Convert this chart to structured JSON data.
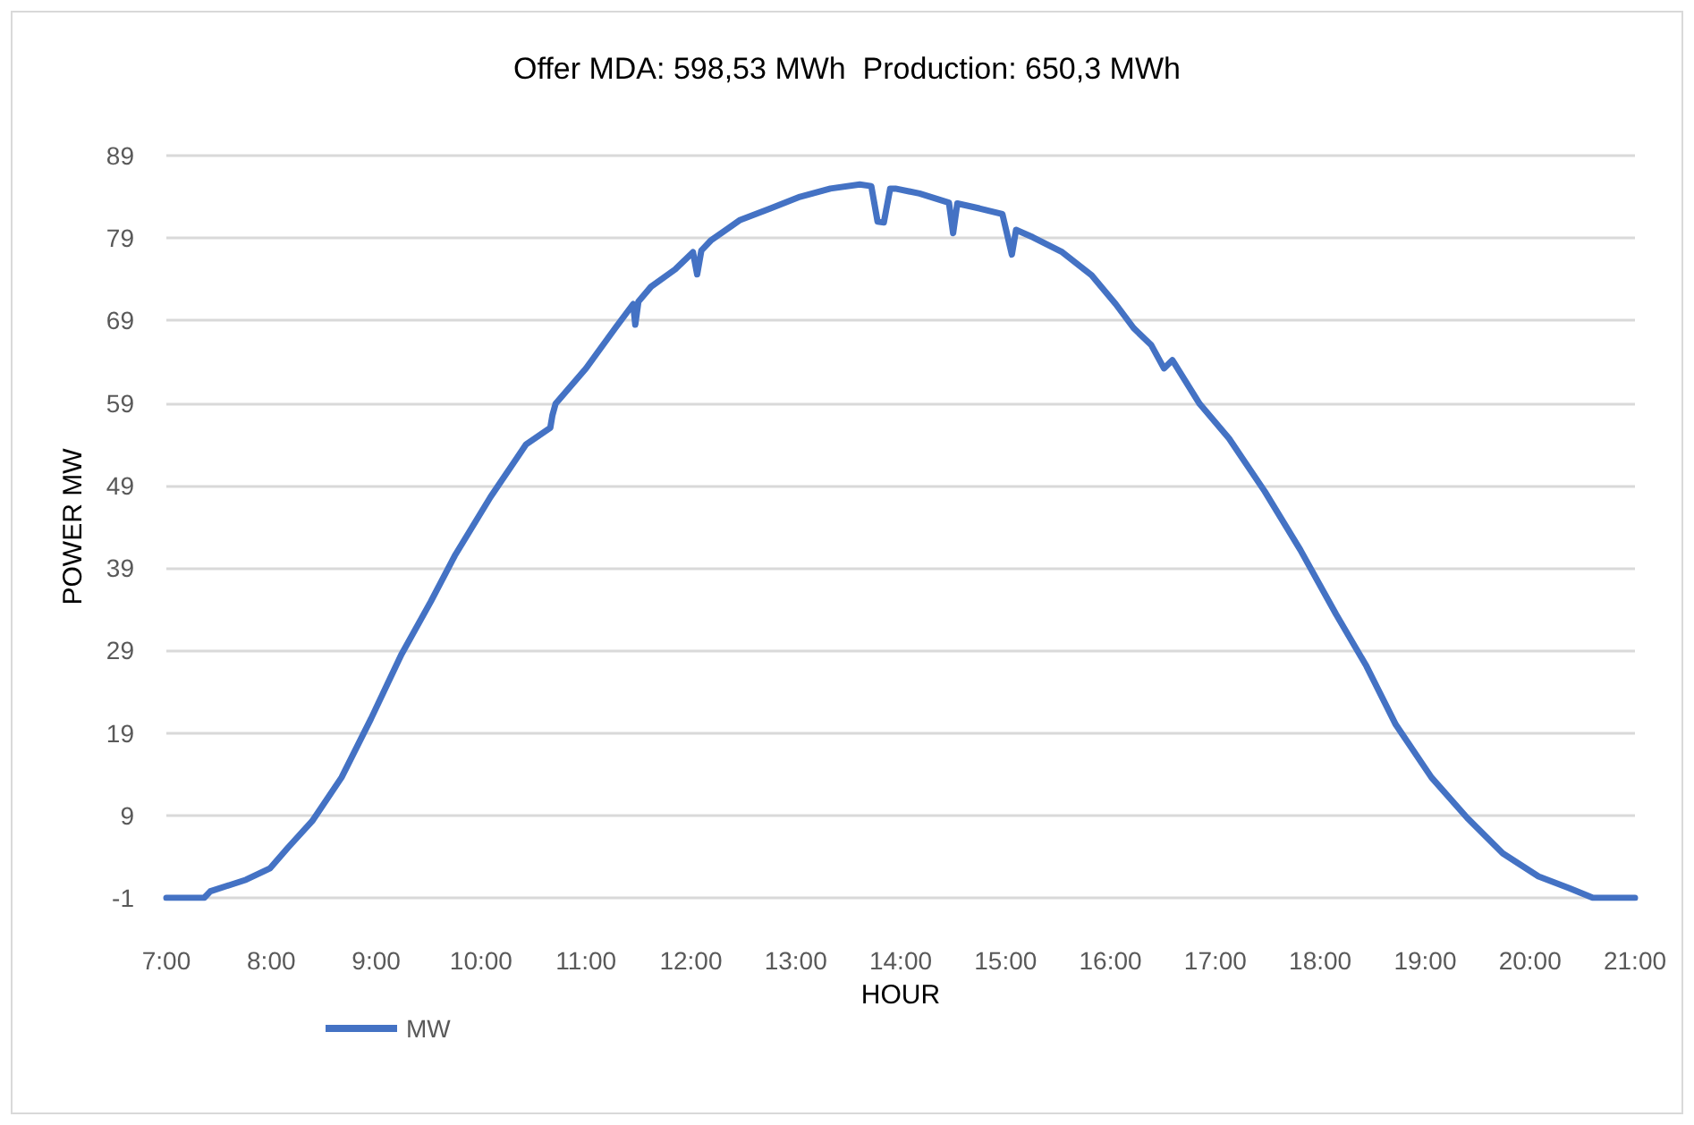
{
  "chart_data": {
    "type": "line",
    "title": "Offer MDA: 598,53 MWh  Production: 650,3 MWh",
    "xlabel": "HOUR",
    "ylabel": "POWER MW",
    "xlim": [
      7,
      21
    ],
    "xticks": [
      {
        "value": 7,
        "label": "7:00"
      },
      {
        "value": 8,
        "label": "8:00"
      },
      {
        "value": 9,
        "label": "9:00"
      },
      {
        "value": 10,
        "label": "10:00"
      },
      {
        "value": 11,
        "label": "11:00"
      },
      {
        "value": 12,
        "label": "12:00"
      },
      {
        "value": 13,
        "label": "13:00"
      },
      {
        "value": 14,
        "label": "14:00"
      },
      {
        "value": 15,
        "label": "15:00"
      },
      {
        "value": 16,
        "label": "16:00"
      },
      {
        "value": 17,
        "label": "17:00"
      },
      {
        "value": 18,
        "label": "18:00"
      },
      {
        "value": 19,
        "label": "19:00"
      },
      {
        "value": 20,
        "label": "20:00"
      },
      {
        "value": 21,
        "label": "21:00"
      }
    ],
    "ylim": [
      -1,
      89
    ],
    "yticks": [
      -1,
      9,
      19,
      29,
      39,
      49,
      59,
      69,
      79,
      89
    ],
    "grid": "y",
    "legend": "bottom left",
    "marker": "none",
    "line_style": "solid",
    "series": [
      {
        "name": "MW",
        "color": "#4472c4",
        "x": [
          7.0,
          7.36,
          7.42,
          7.76,
          7.99,
          8.16,
          8.39,
          8.67,
          8.95,
          9.24,
          9.52,
          9.75,
          10.09,
          10.43,
          10.66,
          10.68,
          10.71,
          11.0,
          11.28,
          11.45,
          11.47,
          11.5,
          11.62,
          11.85,
          12.02,
          12.06,
          12.1,
          12.19,
          12.47,
          12.76,
          13.04,
          13.33,
          13.61,
          13.72,
          13.78,
          13.84,
          13.9,
          13.95,
          14.18,
          14.46,
          14.5,
          14.54,
          14.75,
          14.97,
          15.06,
          15.1,
          15.26,
          15.54,
          15.82,
          16.05,
          16.22,
          16.39,
          16.51,
          16.59,
          16.85,
          17.13,
          17.47,
          17.81,
          18.15,
          18.44,
          18.72,
          19.06,
          19.4,
          19.74,
          20.08,
          20.37,
          20.6,
          21.0
        ],
        "values": [
          -1,
          -1,
          -0.2,
          1.2,
          2.6,
          5.1,
          8.3,
          13.6,
          20.7,
          28.5,
          34.9,
          40.5,
          47.6,
          54.0,
          56.0,
          57.5,
          58.9,
          63.2,
          68.1,
          71.0,
          68.5,
          71.3,
          73.1,
          75.2,
          77.3,
          74.6,
          77.5,
          78.7,
          81.2,
          82.6,
          84.0,
          85.0,
          85.5,
          85.3,
          81.0,
          80.9,
          85.0,
          85.0,
          84.4,
          83.3,
          79.6,
          83.2,
          82.6,
          81.9,
          77.0,
          80.0,
          79.1,
          77.3,
          74.5,
          71.0,
          68.1,
          66.0,
          63.2,
          64.2,
          58.9,
          54.7,
          48.3,
          41.2,
          33.4,
          27.1,
          20.0,
          13.6,
          8.7,
          4.4,
          1.6,
          0.2,
          -1,
          -1
        ]
      }
    ]
  }
}
